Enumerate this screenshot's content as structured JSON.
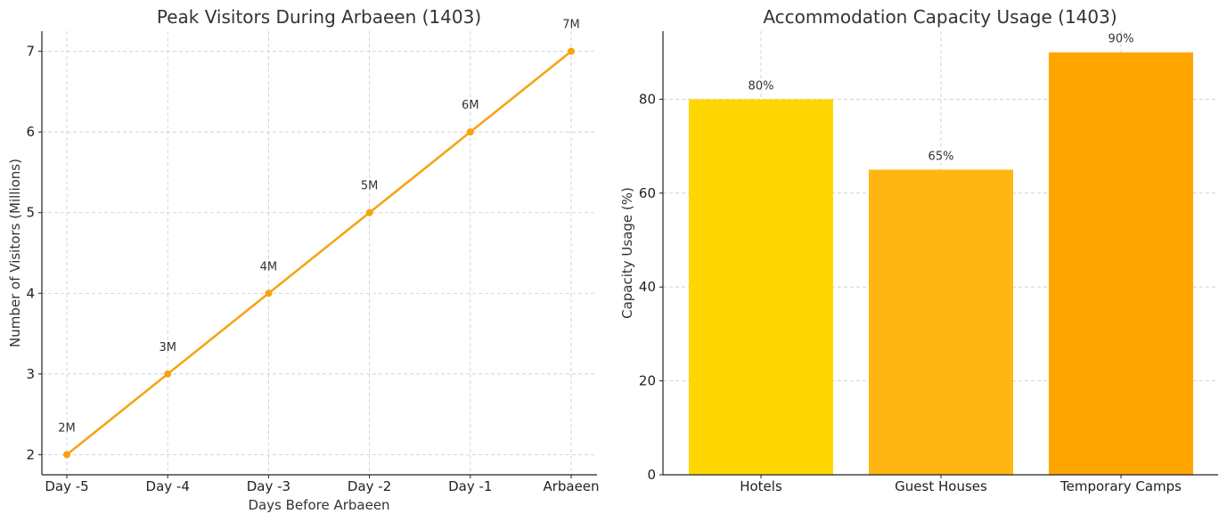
{
  "chart_data": [
    {
      "type": "line",
      "title": "Peak Visitors During Arbaeen (1403)",
      "xlabel": "Days Before Arbaeen",
      "ylabel": "Number of Visitors (Millions)",
      "categories": [
        "Day -5",
        "Day -4",
        "Day -3",
        "Day -2",
        "Day -1",
        "Arbaeen"
      ],
      "series": [
        {
          "values": [
            2,
            3,
            4,
            5,
            6,
            7
          ],
          "labels": [
            "2M",
            "3M",
            "4M",
            "5M",
            "6M",
            "7M"
          ]
        }
      ],
      "ylim": [
        1.75,
        7.25
      ],
      "yticks": [
        2,
        3,
        4,
        5,
        6,
        7
      ],
      "grid": true,
      "color": "#f5a30f"
    },
    {
      "type": "bar",
      "title": "Accommodation Capacity Usage (1403)",
      "xlabel": "",
      "ylabel": "Capacity Usage (%)",
      "categories": [
        "Hotels",
        "Guest Houses",
        "Temporary Camps"
      ],
      "values": [
        80,
        65,
        90
      ],
      "labels": [
        "80%",
        "65%",
        "90%"
      ],
      "ylim": [
        0,
        94.5
      ],
      "yticks": [
        0,
        20,
        40,
        60,
        80
      ],
      "grid": true,
      "colors": [
        "#ffd700",
        "#ffb612",
        "#ffa500"
      ]
    }
  ]
}
